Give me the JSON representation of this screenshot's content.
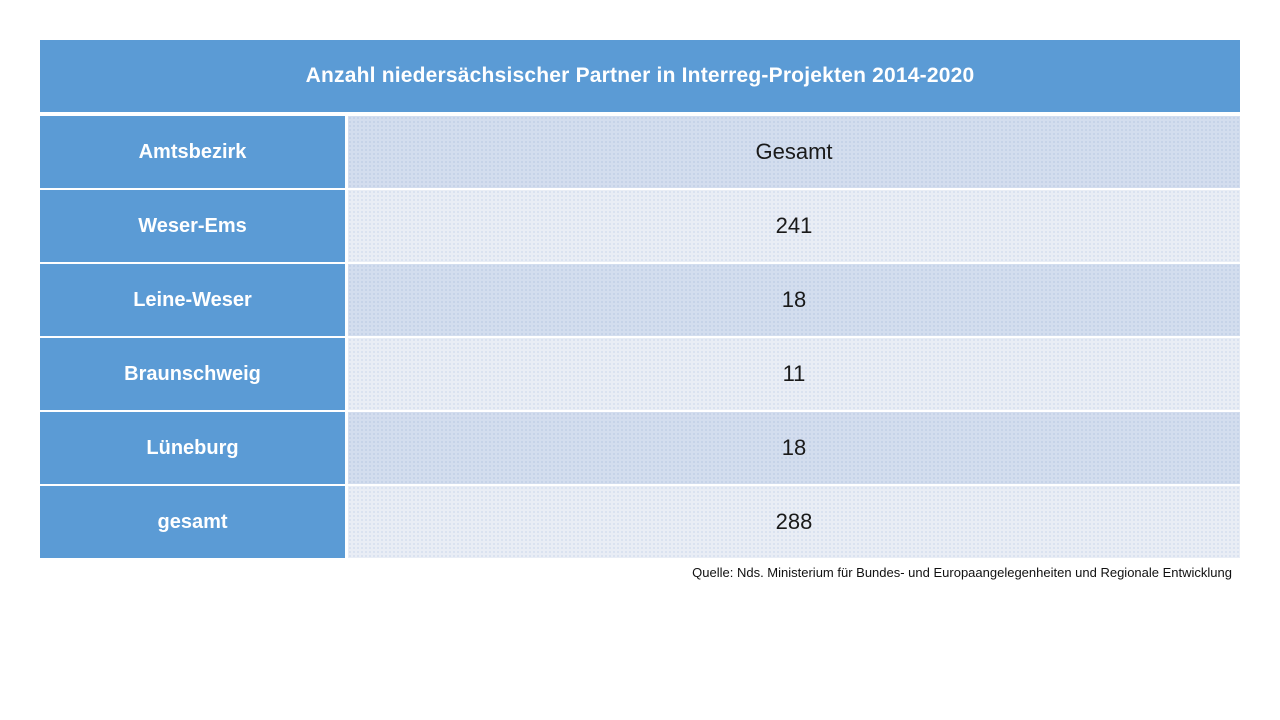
{
  "table": {
    "title": "Anzahl niedersächsischer Partner in Interreg-Projekten 2014-2020",
    "header": {
      "col1": "Amtsbezirk",
      "col2": "Gesamt"
    },
    "rows": [
      {
        "label": "Weser-Ems",
        "value": "241"
      },
      {
        "label": "Leine-Weser",
        "value": "18"
      },
      {
        "label": "Braunschweig",
        "value": "11"
      },
      {
        "label": "Lüneburg",
        "value": "18"
      },
      {
        "label": "gesamt",
        "value": "288"
      }
    ],
    "source": "Quelle: Nds. Ministerium für Bundes- und Europaangelegenheiten und Regionale Entwicklung"
  },
  "colors": {
    "header_blue": "#5B9BD5",
    "band_dark": "#D3DDEE",
    "band_light": "#E9EDF5",
    "title_text": "#FFFFFF",
    "value_text": "#1A1A1A"
  },
  "chart_data": {
    "type": "table",
    "title": "Anzahl niedersächsischer Partner in Interreg-Projekten 2014-2020",
    "columns": [
      "Amtsbezirk",
      "Gesamt"
    ],
    "rows": [
      [
        "Weser-Ems",
        241
      ],
      [
        "Leine-Weser",
        18
      ],
      [
        "Braunschweig",
        11
      ],
      [
        "Lüneburg",
        18
      ],
      [
        "gesamt",
        288
      ]
    ],
    "source": "Quelle: Nds. Ministerium für Bundes- und Europaangelegenheiten und Regionale Entwicklung",
    "layout_hints": {
      "header_style": "blue banner full width",
      "row_banding": "alternating light blue bands starting dark at header row",
      "source_position": "bottom right below table"
    }
  }
}
